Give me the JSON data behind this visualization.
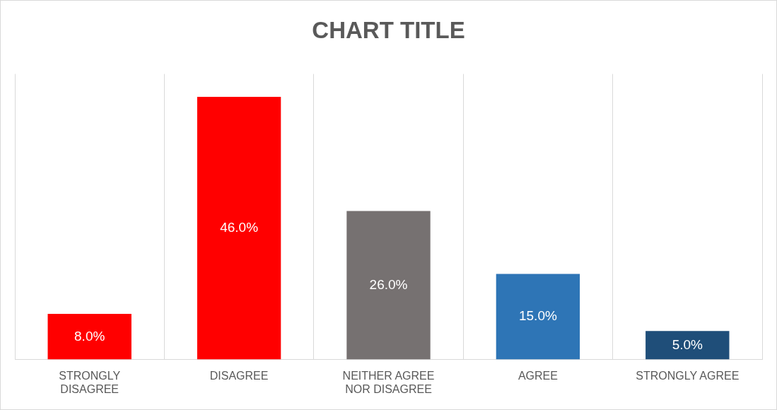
{
  "chart_data": {
    "type": "bar",
    "title": "CHART TITLE",
    "categories": [
      "STRONGLY DISAGREE",
      "DISAGREE",
      "NEITHER AGREE NOR DISAGREE",
      "AGREE",
      "STRONGLY AGREE"
    ],
    "values": [
      8.0,
      46.0,
      26.0,
      15.0,
      5.0
    ],
    "colors": [
      "#ff0000",
      "#ff0000",
      "#767171",
      "#2e75b6",
      "#1f4e79"
    ],
    "value_labels": [
      "8.0%",
      "46.0%",
      "26.0%",
      "15.0%",
      "5.0%"
    ],
    "grid": "x",
    "legend": false
  }
}
